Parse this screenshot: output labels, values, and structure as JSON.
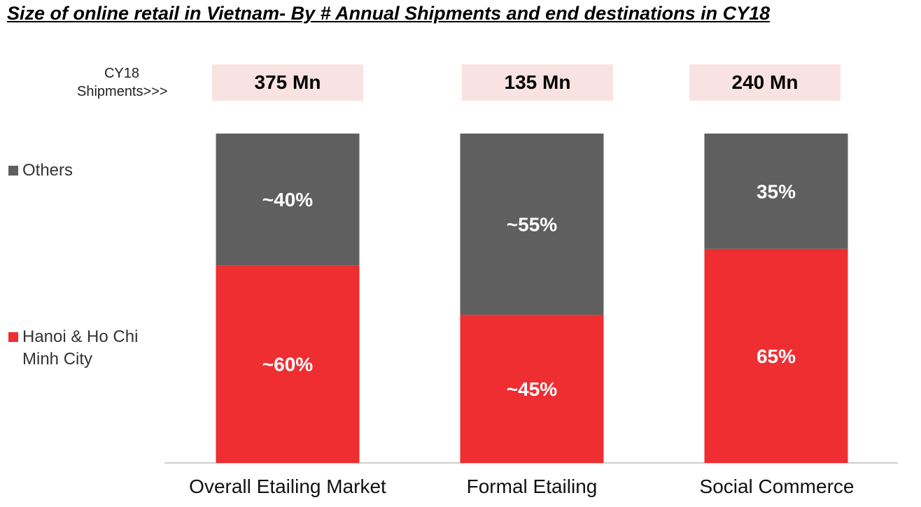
{
  "title": "Size of online retail in Vietnam- By # Annual Shipments and end destinations in CY18",
  "shipments_label": [
    "CY18",
    "Shipments>>>"
  ],
  "shipments": [
    "375 Mn",
    "135 Mn",
    "240 Mn"
  ],
  "legend": [
    {
      "name": "Others",
      "color": "#5f5f5f"
    },
    {
      "name": "Hanoi & Ho Chi Minh City",
      "color": "#ee2e31"
    }
  ],
  "chart_data": {
    "type": "bar",
    "stacked": true,
    "categories": [
      "Overall Etailing Market",
      "Formal Etailing",
      "Social Commerce"
    ],
    "series": [
      {
        "name": "Hanoi & Ho Chi Minh City",
        "values": [
          60,
          45,
          65
        ],
        "labels": [
          "~60%",
          "~45%",
          "65%"
        ],
        "color": "#ee2e31"
      },
      {
        "name": "Others",
        "values": [
          40,
          55,
          35
        ],
        "labels": [
          "~40%",
          "~55%",
          "35%"
        ],
        "color": "#5f5f5f"
      }
    ],
    "ylim": [
      0,
      100
    ],
    "grid": false,
    "legend_position": "left"
  }
}
